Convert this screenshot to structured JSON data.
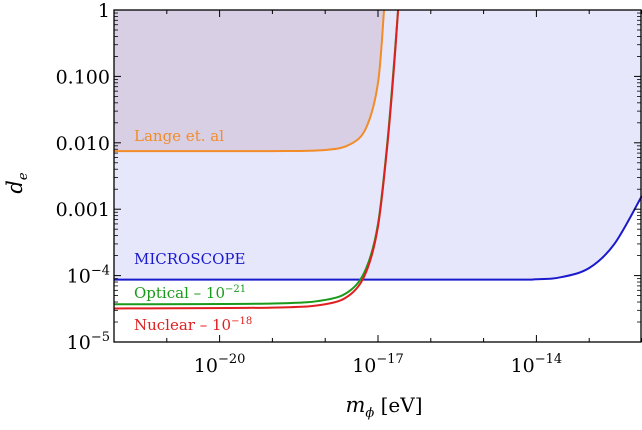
{
  "chart_data": {
    "type": "line",
    "xscale": "log",
    "yscale": "log",
    "xlabel": "m_φ [eV]",
    "ylabel": "d_e",
    "xlim": [
      1e-22,
      1e-12
    ],
    "ylim": [
      1e-05,
      1
    ],
    "x_ticks": [
      {
        "value": 1e-20,
        "label_base": "10",
        "label_exp": "−20"
      },
      {
        "value": 1e-17,
        "label_base": "10",
        "label_exp": "−17"
      },
      {
        "value": 1e-14,
        "label_base": "10",
        "label_exp": "−14"
      }
    ],
    "y_ticks": [
      {
        "value": 1,
        "label_base": "1",
        "label_exp": ""
      },
      {
        "value": 0.1,
        "label_base": "0.100",
        "label_exp": ""
      },
      {
        "value": 0.01,
        "label_base": "0.010",
        "label_exp": ""
      },
      {
        "value": 0.001,
        "label_base": "0.001",
        "label_exp": ""
      },
      {
        "value": 0.0001,
        "label_base": "10",
        "label_exp": "−4"
      },
      {
        "value": 1e-05,
        "label_base": "10",
        "label_exp": "−5"
      }
    ],
    "series": [
      {
        "name": "Lange et. al",
        "color": "#f28c28",
        "fill": "#8b3a3a",
        "fill_opacity": 0.15,
        "x": [
          1e-22,
          1e-19,
          1e-18,
          3e-18,
          6e-18,
          1e-17,
          1.3e-17
        ],
        "y": [
          0.0075,
          0.0075,
          0.0078,
          0.0095,
          0.017,
          0.08,
          1
        ]
      },
      {
        "name": "MICROSCOPE",
        "color": "#1a1acc",
        "fill": "#7b7bf0",
        "fill_opacity": 0.18,
        "x": [
          1e-22,
          1e-15,
          1e-14,
          3e-14,
          1e-13,
          3e-13,
          1e-12
        ],
        "y": [
          8.7e-05,
          8.7e-05,
          8.8e-05,
          9.5e-05,
          0.00013,
          0.0003,
          0.0016
        ]
      },
      {
        "name_base": "Optical – 10",
        "name_exp": "−21",
        "color": "#1a9a1a",
        "x": [
          1e-22,
          1e-19,
          1e-18,
          3e-18,
          6e-18,
          1e-17,
          1.5e-17,
          2e-17,
          2.4e-17
        ],
        "y": [
          3.7e-05,
          3.8e-05,
          4.3e-05,
          6e-05,
          0.00013,
          0.0006,
          0.01,
          0.15,
          1
        ]
      },
      {
        "name_base": "Nuclear – 10",
        "name_exp": "−18",
        "color": "#e02020",
        "x": [
          1e-22,
          1e-19,
          1e-18,
          3e-18,
          6e-18,
          1e-17,
          1.5e-17,
          2e-17,
          2.4e-17
        ],
        "y": [
          3.2e-05,
          3.3e-05,
          3.7e-05,
          5.2e-05,
          0.000115,
          0.00055,
          0.009,
          0.13,
          1
        ]
      }
    ]
  }
}
